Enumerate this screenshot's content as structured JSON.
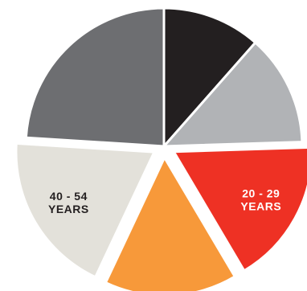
{
  "chart_data": {
    "type": "pie",
    "title": "",
    "slices": [
      {
        "label": "",
        "value": 11.5,
        "color": "#231f20",
        "label_color": "#ffffff",
        "exploded": false
      },
      {
        "label": "",
        "value": 13.0,
        "color": "#b1b3b6",
        "label_color": "#ffffff",
        "exploded": false
      },
      {
        "label": "20 - 29\nYEARS",
        "value": 17.0,
        "color": "#ee3124",
        "label_color": "#ffffff",
        "exploded": true
      },
      {
        "label": "",
        "value": 15.5,
        "color": "#f7993a",
        "label_color": "#ffffff",
        "exploded": true
      },
      {
        "label": "40 - 54\nYEARS",
        "value": 19.0,
        "color": "#e3e1da",
        "label_color": "#231f20",
        "exploded": true
      },
      {
        "label": "",
        "value": 24.0,
        "color": "#6d6e71",
        "label_color": "#ffffff",
        "exploded": false
      }
    ],
    "start_angle_deg": 0,
    "direction": "clockwise",
    "legend": "none"
  }
}
